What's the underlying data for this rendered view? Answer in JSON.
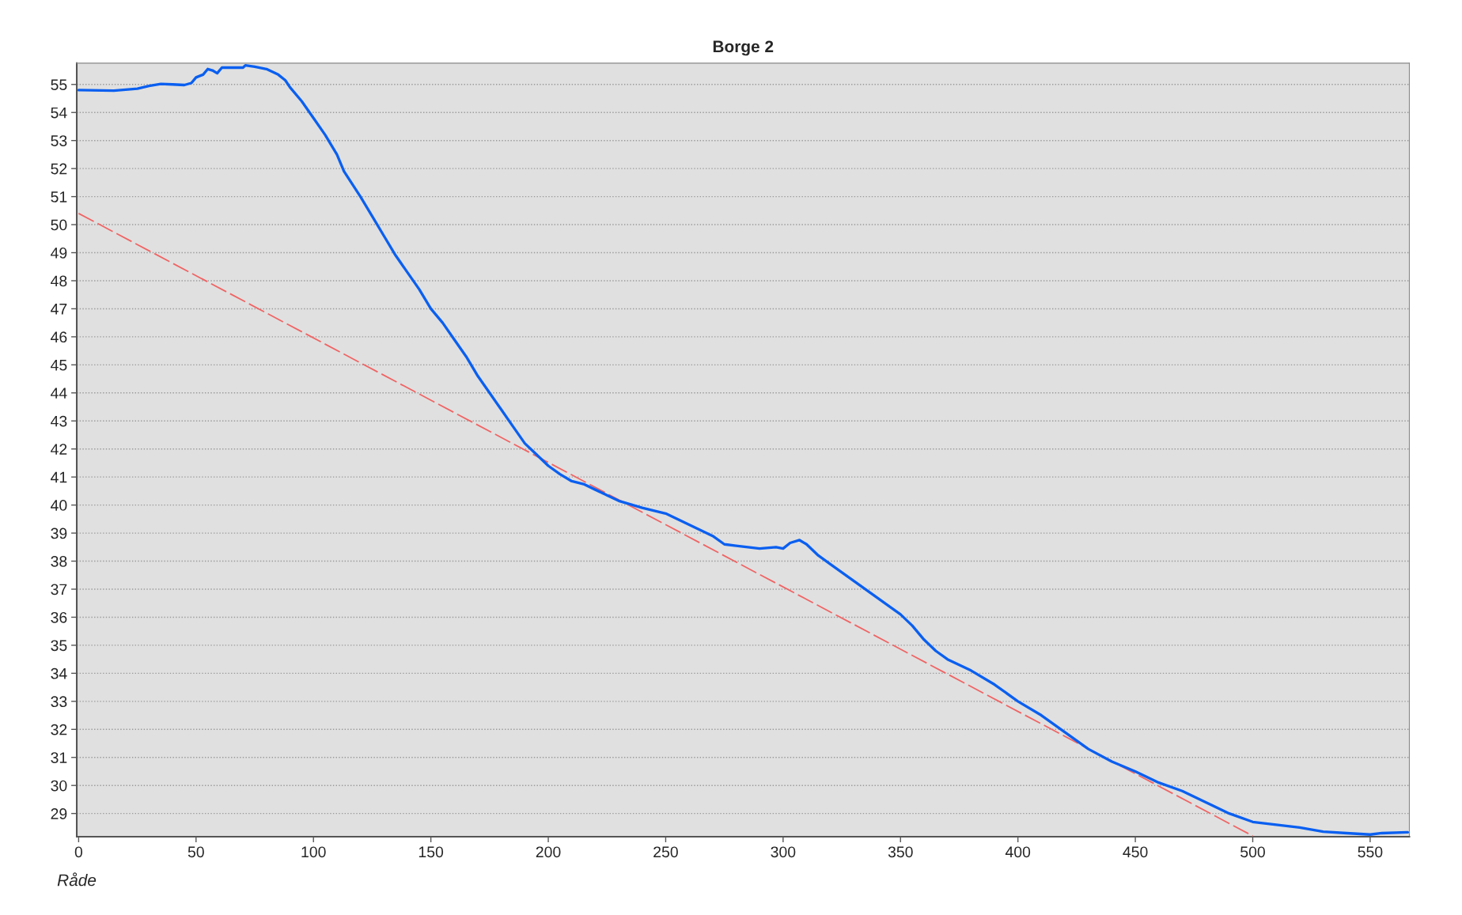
{
  "chart_data": {
    "type": "line",
    "title": "Borge 2",
    "xlabel": "Råde",
    "xlim": [
      -0.8,
      566.7
    ],
    "ylim": [
      28.17,
      55.76
    ],
    "xticks": [
      0,
      50,
      100,
      150,
      200,
      250,
      300,
      350,
      400,
      450,
      500,
      550
    ],
    "yticks": [
      29,
      30,
      31,
      32,
      33,
      34,
      35,
      36,
      37,
      38,
      39,
      40,
      41,
      42,
      43,
      44,
      45,
      46,
      47,
      48,
      49,
      50,
      51,
      52,
      53,
      54,
      55
    ],
    "grid": "y",
    "marker": "none",
    "series": [
      {
        "color": "#0a5ff0",
        "line_style": "solid",
        "x": [
          0,
          15,
          25,
          30,
          35,
          40,
          45,
          48,
          50,
          53,
          55,
          57,
          59,
          61,
          65,
          70,
          71,
          75,
          80,
          85,
          88,
          90,
          95,
          100,
          105,
          110,
          113,
          120,
          125,
          130,
          135,
          140,
          145,
          150,
          155,
          160,
          165,
          170,
          175,
          180,
          185,
          190,
          195,
          200,
          205,
          210,
          215,
          220,
          225,
          230,
          240,
          250,
          260,
          270,
          275,
          280,
          290,
          297,
          300,
          303,
          307,
          310,
          315,
          320,
          330,
          340,
          350,
          355,
          360,
          365,
          370,
          380,
          390,
          400,
          410,
          420,
          430,
          440,
          450,
          460,
          470,
          480,
          490,
          500,
          510,
          520,
          530,
          540,
          550,
          555,
          566
        ],
        "values": [
          54.8,
          54.78,
          54.85,
          54.95,
          55.02,
          55.0,
          54.98,
          55.05,
          55.25,
          55.35,
          55.55,
          55.5,
          55.4,
          55.6,
          55.6,
          55.6,
          55.68,
          55.63,
          55.55,
          55.35,
          55.15,
          54.9,
          54.4,
          53.8,
          53.2,
          52.5,
          51.9,
          51.0,
          50.3,
          49.6,
          48.9,
          48.3,
          47.7,
          47.0,
          46.5,
          45.9,
          45.3,
          44.6,
          44.0,
          43.4,
          42.8,
          42.2,
          41.8,
          41.4,
          41.1,
          40.85,
          40.75,
          40.55,
          40.35,
          40.15,
          39.9,
          39.7,
          39.3,
          38.9,
          38.6,
          38.55,
          38.45,
          38.5,
          38.45,
          38.65,
          38.75,
          38.6,
          38.2,
          37.9,
          37.3,
          36.7,
          36.1,
          35.7,
          35.2,
          34.8,
          34.5,
          34.1,
          33.6,
          33.0,
          32.5,
          31.9,
          31.3,
          30.85,
          30.5,
          30.1,
          29.8,
          29.4,
          29.0,
          28.7,
          28.6,
          28.5,
          28.35,
          28.3,
          28.25,
          28.3,
          28.33
        ]
      },
      {
        "color": "#f06464",
        "line_style": "dashed",
        "x": [
          0,
          500
        ],
        "values": [
          50.4,
          28.2
        ]
      }
    ]
  }
}
